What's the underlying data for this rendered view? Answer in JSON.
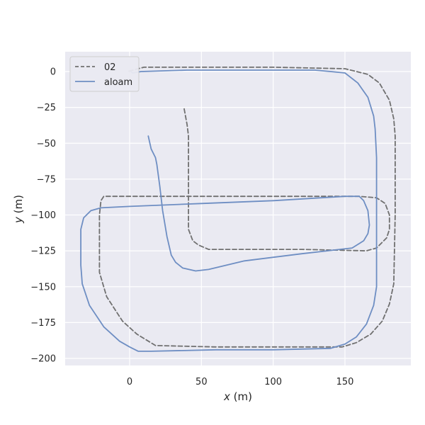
{
  "chart_data": {
    "type": "line",
    "title": "",
    "xlabel_var": "x",
    "xlabel_unit": " (m)",
    "ylabel_var": "y",
    "ylabel_unit": " (m)",
    "xlim": [
      -45,
      195
    ],
    "ylim": [
      -205,
      12
    ],
    "xticks": [
      0,
      50,
      100,
      150
    ],
    "xtick_labels": [
      "0",
      "50",
      "100",
      "150"
    ],
    "yticks": [
      0,
      -25,
      -50,
      -75,
      -100,
      -125,
      -150,
      -175,
      -200
    ],
    "ytick_labels": [
      "0",
      "−25",
      "−50",
      "−75",
      "−100",
      "−125",
      "−150",
      "−175",
      "−200"
    ],
    "grid": true,
    "legend_position": "top-left",
    "series": [
      {
        "name": "02",
        "style": "dashed",
        "color": "#707070",
        "points": [
          [
            38,
            -26
          ],
          [
            40,
            -37
          ],
          [
            41,
            -45
          ],
          [
            41,
            -80
          ],
          [
            41,
            -110
          ],
          [
            44,
            -118
          ],
          [
            48,
            -121
          ],
          [
            55,
            -124
          ],
          [
            80,
            -124
          ],
          [
            120,
            -124
          ],
          [
            165,
            -125
          ],
          [
            172,
            -123
          ],
          [
            179,
            -116
          ],
          [
            181,
            -110
          ],
          [
            181,
            -100
          ],
          [
            178,
            -92
          ],
          [
            172,
            -88
          ],
          [
            160,
            -87
          ],
          [
            100,
            -87
          ],
          [
            20,
            -87
          ],
          [
            -18,
            -87
          ],
          [
            -20,
            -90
          ],
          [
            -21,
            -100
          ],
          [
            -21,
            -140
          ],
          [
            -16,
            -157
          ],
          [
            -5,
            -174
          ],
          [
            5,
            -183
          ],
          [
            18,
            -191
          ],
          [
            60,
            -192
          ],
          [
            100,
            -192
          ],
          [
            148,
            -192
          ],
          [
            158,
            -189
          ],
          [
            168,
            -183
          ],
          [
            176,
            -174
          ],
          [
            181,
            -162
          ],
          [
            184,
            -148
          ],
          [
            185,
            -100
          ],
          [
            185,
            -45
          ],
          [
            184,
            -33
          ],
          [
            181,
            -20
          ],
          [
            174,
            -8
          ],
          [
            166,
            -2
          ],
          [
            150,
            2
          ],
          [
            100,
            3
          ],
          [
            40,
            3
          ],
          [
            10,
            3
          ],
          [
            2,
            1
          ],
          [
            -1,
            0
          ]
        ]
      },
      {
        "name": "aloam",
        "style": "solid",
        "color": "#6e8ec3",
        "points": [
          [
            13,
            -45
          ],
          [
            15,
            -54
          ],
          [
            18,
            -60
          ],
          [
            19,
            -65
          ],
          [
            21,
            -80
          ],
          [
            23,
            -97
          ],
          [
            26,
            -115
          ],
          [
            29,
            -128
          ],
          [
            32,
            -133
          ],
          [
            37,
            -137
          ],
          [
            46,
            -139
          ],
          [
            55,
            -138
          ],
          [
            80,
            -132
          ],
          [
            120,
            -127
          ],
          [
            155,
            -123
          ],
          [
            163,
            -118
          ],
          [
            166,
            -113
          ],
          [
            167,
            -107
          ],
          [
            166,
            -97
          ],
          [
            163,
            -90
          ],
          [
            160,
            -87
          ],
          [
            150,
            -87
          ],
          [
            100,
            -90
          ],
          [
            50,
            -92
          ],
          [
            0,
            -94
          ],
          [
            -20,
            -95
          ],
          [
            -27,
            -97
          ],
          [
            -32,
            -102
          ],
          [
            -34,
            -110
          ],
          [
            -34,
            -135
          ],
          [
            -33,
            -148
          ],
          [
            -28,
            -163
          ],
          [
            -18,
            -178
          ],
          [
            -7,
            -188
          ],
          [
            0,
            -192
          ],
          [
            6,
            -195
          ],
          [
            15,
            -195
          ],
          [
            60,
            -194
          ],
          [
            100,
            -194
          ],
          [
            140,
            -193
          ],
          [
            150,
            -190
          ],
          [
            158,
            -185
          ],
          [
            165,
            -176
          ],
          [
            170,
            -163
          ],
          [
            172,
            -150
          ],
          [
            172,
            -100
          ],
          [
            172,
            -60
          ],
          [
            171,
            -40
          ],
          [
            170,
            -31
          ],
          [
            166,
            -18
          ],
          [
            159,
            -8
          ],
          [
            150,
            -1
          ],
          [
            140,
            0
          ],
          [
            129,
            1
          ],
          [
            100,
            1
          ],
          [
            40,
            1
          ],
          [
            8,
            0
          ],
          [
            2,
            -1
          ],
          [
            1,
            0
          ]
        ]
      }
    ]
  }
}
